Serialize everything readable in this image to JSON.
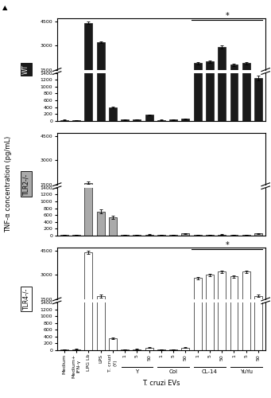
{
  "chart_data": [
    {
      "type": "bar",
      "title": "WT",
      "categories": [
        "Medium",
        "Medium+\nIFN-γ",
        "LPG Lb",
        "LPS",
        "T. cruzi\n(Y)",
        "1",
        "5",
        "50",
        "1",
        "5",
        "50",
        "1",
        "5",
        "50",
        "1",
        "5",
        "50"
      ],
      "values": [
        25,
        20,
        4400,
        3200,
        390,
        30,
        40,
        170,
        20,
        35,
        60,
        1900,
        2000,
        2900,
        1800,
        1900,
        1250
      ],
      "errors": [
        5,
        5,
        80,
        60,
        30,
        8,
        10,
        20,
        8,
        8,
        10,
        60,
        60,
        80,
        60,
        60,
        60
      ],
      "color": "#1a1a1a",
      "edge_color": "#1a1a1a",
      "ylim": [
        [
          0,
          1400
        ],
        [
          1500,
          4700
        ]
      ],
      "yticks": [
        [
          0,
          200,
          400,
          600,
          800,
          1000,
          1200,
          1400
        ],
        [
          1500,
          3000,
          4500
        ]
      ],
      "tick_labels": "y",
      "annotations": [
        {
          "text": "▲"
        },
        {
          "text": "*",
          "x1": 10.5,
          "x2": 16.35,
          "y": 4580
        }
      ]
    },
    {
      "type": "bar",
      "title": "TLR2-/-",
      "categories": [
        "Medium",
        "Medium+\nIFN-γ",
        "LPG Lb",
        "LPS",
        "T. cruzi\n(Y)",
        "1",
        "5",
        "50",
        "1",
        "5",
        "50",
        "1",
        "5",
        "50",
        "1",
        "5",
        "50"
      ],
      "values": [
        20,
        15,
        1600,
        700,
        530,
        20,
        25,
        30,
        15,
        15,
        60,
        20,
        20,
        25,
        15,
        15,
        60
      ],
      "errors": [
        5,
        5,
        80,
        60,
        40,
        5,
        5,
        8,
        5,
        5,
        10,
        5,
        5,
        8,
        5,
        5,
        10
      ],
      "color": "#aaaaaa",
      "edge_color": "#1a1a1a",
      "ylim": [
        [
          0,
          1400
        ],
        [
          1500,
          4700
        ]
      ],
      "yticks": [
        [
          0,
          200,
          400,
          600,
          800,
          1000,
          1200,
          1400
        ],
        [
          1500,
          3000,
          4500
        ]
      ],
      "tick_labels": "y",
      "ylabel": "TNF-α concentration (pg/mL)"
    },
    {
      "type": "bar",
      "title": "TLR4-/-",
      "categories": [
        "Medium",
        "Medium+\nIFN-γ",
        "LPG Lb",
        "LPS",
        "T. cruzi\n(Y)",
        "1",
        "5",
        "50",
        "1",
        "5",
        "50",
        "1",
        "5",
        "50",
        "1",
        "5",
        "50"
      ],
      "values": [
        20,
        30,
        4400,
        1700,
        350,
        20,
        30,
        80,
        25,
        25,
        75,
        2800,
        3000,
        3200,
        2900,
        3200,
        1700
      ],
      "errors": [
        5,
        5,
        80,
        100,
        25,
        5,
        5,
        10,
        5,
        5,
        10,
        80,
        80,
        80,
        80,
        80,
        80
      ],
      "color": "#ffffff",
      "edge_color": "#1a1a1a",
      "ylim": [
        [
          0,
          1400
        ],
        [
          1500,
          4700
        ]
      ],
      "yticks": [
        [
          0,
          200,
          400,
          600,
          800,
          1000,
          1200,
          1400
        ],
        [
          1500,
          3000,
          4500
        ]
      ],
      "annotations": [
        {
          "text": "*",
          "x1": 10.5,
          "x2": 16.35,
          "y": 4580
        }
      ],
      "groups": [
        {
          "label": "Y",
          "from": 5,
          "to": 7
        },
        {
          "label": "Col",
          "from": 8,
          "to": 10
        },
        {
          "label": "CL-14",
          "from": 11,
          "to": 13
        },
        {
          "label": "YuYu",
          "from": 14,
          "to": 16
        }
      ],
      "xlabel": "T. cruzi EVs"
    }
  ]
}
